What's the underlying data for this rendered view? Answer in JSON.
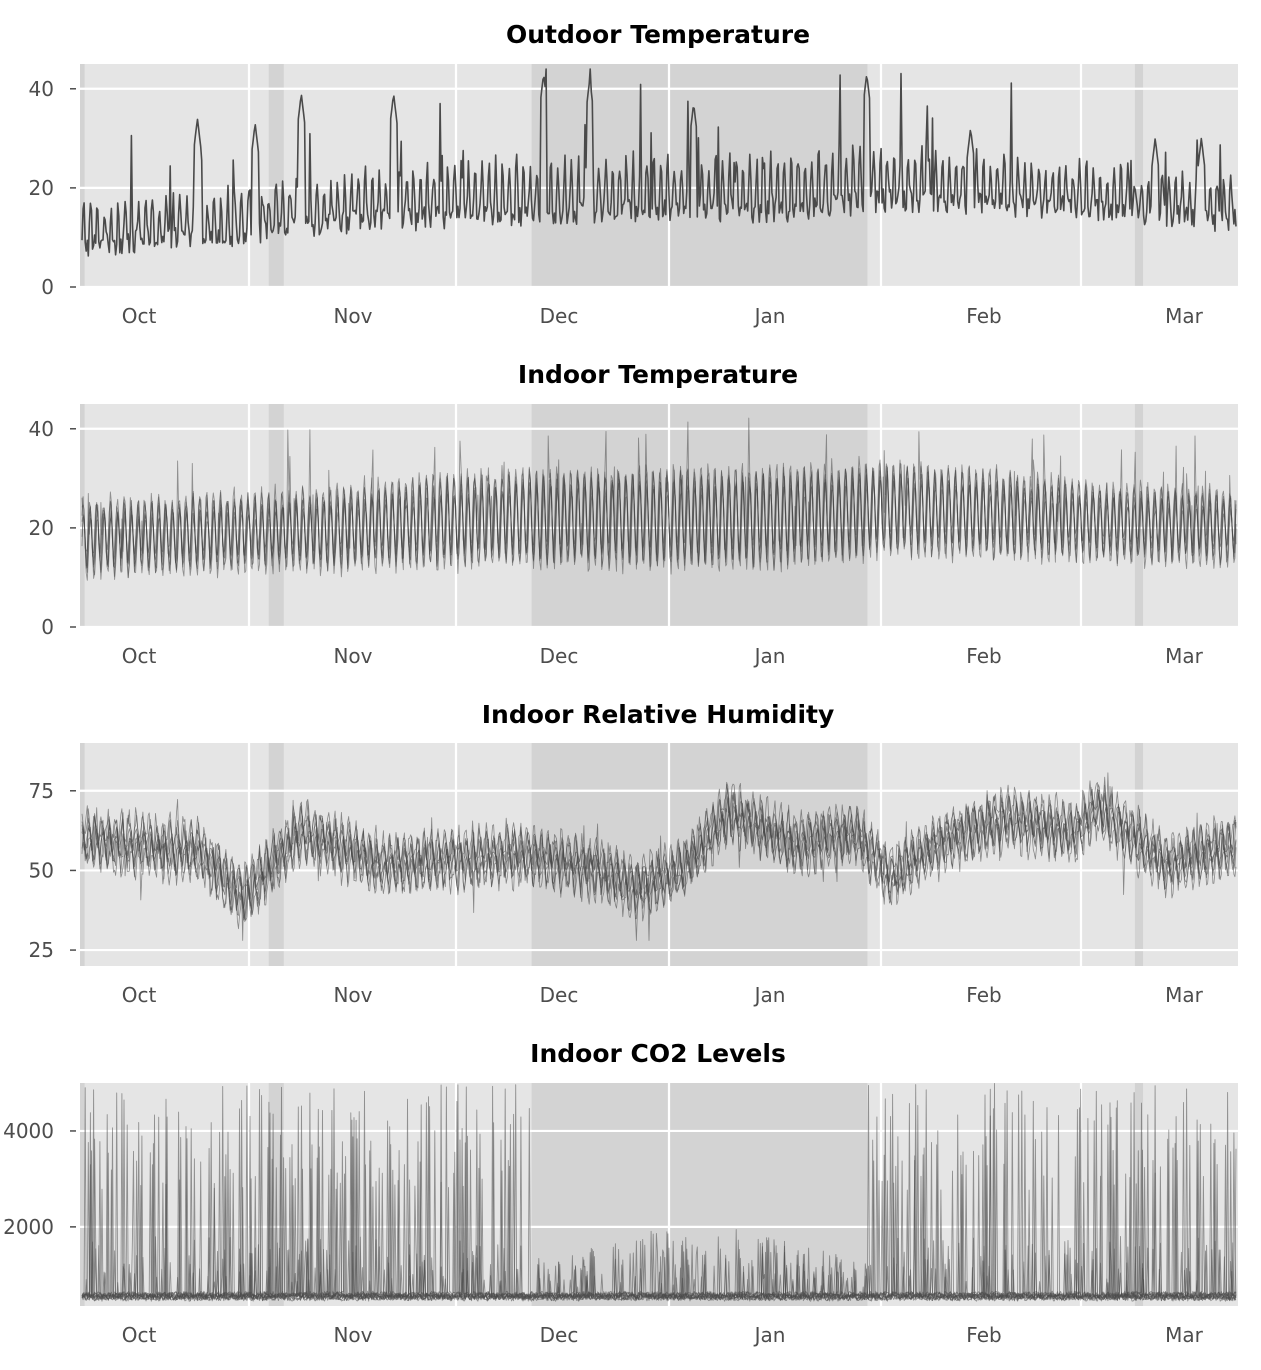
{
  "chart_data": [
    {
      "type": "line",
      "title": "Outdoor Temperature",
      "xlabel": "",
      "ylabel": "",
      "x_tick_labels": [
        "Oct",
        "Nov",
        "Dec",
        "Jan",
        "Feb",
        "Mar"
      ],
      "y_ticks": [
        "0",
        "20",
        "40"
      ],
      "ylim": [
        0,
        45
      ],
      "grid": true,
      "series_count": 1,
      "baseline": 14,
      "trend_points": [
        [
          0,
          11
        ],
        [
          0.12,
          13
        ],
        [
          0.22,
          16
        ],
        [
          0.35,
          18
        ],
        [
          0.48,
          19
        ],
        [
          0.6,
          19
        ],
        [
          0.7,
          21
        ],
        [
          0.78,
          20
        ],
        [
          0.9,
          18
        ],
        [
          1,
          16
        ]
      ],
      "spike_peaks": [
        34,
        33,
        39,
        39,
        43,
        42,
        37,
        43,
        32,
        30,
        30
      ]
    },
    {
      "type": "line",
      "title": "Indoor Temperature",
      "xlabel": "",
      "ylabel": "",
      "x_tick_labels": [
        "Oct",
        "Nov",
        "Dec",
        "Jan",
        "Feb",
        "Mar"
      ],
      "y_ticks": [
        "0",
        "20",
        "40"
      ],
      "ylim": [
        0,
        45
      ],
      "grid": true,
      "series_count": 6,
      "baseline": 19,
      "trend_points": [
        [
          0,
          18
        ],
        [
          0.12,
          19
        ],
        [
          0.22,
          20
        ],
        [
          0.35,
          22
        ],
        [
          0.48,
          22
        ],
        [
          0.6,
          22
        ],
        [
          0.7,
          24
        ],
        [
          0.78,
          23
        ],
        [
          0.9,
          21
        ],
        [
          1,
          20
        ]
      ]
    },
    {
      "type": "line",
      "title": "Indoor Relative Humidity",
      "xlabel": "",
      "ylabel": "",
      "x_tick_labels": [
        "Oct",
        "Nov",
        "Dec",
        "Jan",
        "Feb",
        "Mar"
      ],
      "y_ticks": [
        "25",
        "50",
        "75"
      ],
      "ylim": [
        20,
        90
      ],
      "grid": true,
      "series_count": 8,
      "trend_points": [
        [
          0,
          60
        ],
        [
          0.1,
          56
        ],
        [
          0.14,
          42
        ],
        [
          0.19,
          62
        ],
        [
          0.26,
          52
        ],
        [
          0.38,
          55
        ],
        [
          0.45,
          50
        ],
        [
          0.48,
          44
        ],
        [
          0.52,
          50
        ],
        [
          0.56,
          68
        ],
        [
          0.62,
          58
        ],
        [
          0.67,
          62
        ],
        [
          0.7,
          48
        ],
        [
          0.75,
          60
        ],
        [
          0.8,
          66
        ],
        [
          0.86,
          62
        ],
        [
          0.88,
          70
        ],
        [
          0.94,
          52
        ],
        [
          1,
          58
        ]
      ]
    },
    {
      "type": "line",
      "title": "Indoor CO2 Levels",
      "xlabel": "",
      "ylabel": "",
      "x_tick_labels": [
        "Oct",
        "Nov",
        "Dec",
        "Jan",
        "Feb",
        "Mar"
      ],
      "y_ticks": [
        "2000",
        "4000"
      ],
      "ylim": [
        350,
        5000
      ],
      "grid": true,
      "series_count": 10,
      "baseline": 450,
      "spike_peak": 5000,
      "winter_max": 1800
    }
  ],
  "shaded_periods": [
    {
      "start": 0.0,
      "end": 0.004
    },
    {
      "start": 0.163,
      "end": 0.176
    },
    {
      "start": 0.39,
      "end": 0.51
    },
    {
      "start": 0.51,
      "end": 0.68
    },
    {
      "start": 0.911,
      "end": 0.918
    }
  ],
  "colors": {
    "panel_background": "#e5e5e5",
    "grid": "#ffffff",
    "shading": "#c4c4c4",
    "line": "#4a4a4a"
  }
}
